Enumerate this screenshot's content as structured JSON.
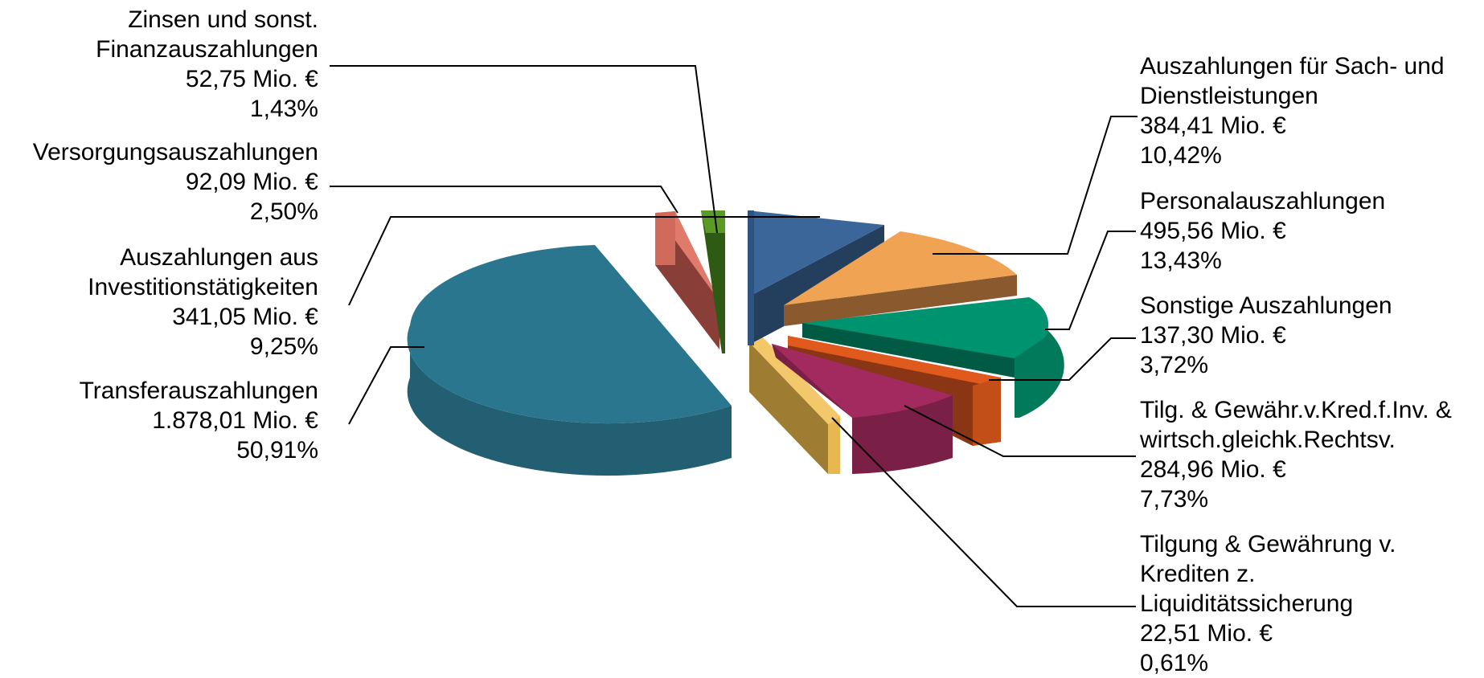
{
  "chart_data": {
    "type": "pie",
    "variant": "3d-exploded",
    "unit": "Mio. €",
    "slices": [
      {
        "label_lines": [
          "Auszahlungen für Sach- und",
          "Dienstleistungen"
        ],
        "value": 384.41,
        "value_text": "384,41 Mio. €",
        "percent": 10.42,
        "percent_text": "10,42%",
        "color": "#3A6699"
      },
      {
        "label_lines": [
          "Personalauszahlungen"
        ],
        "value": 495.56,
        "value_text": "495,56 Mio. €",
        "percent": 13.43,
        "percent_text": "13,43%",
        "color": "#F0A352"
      },
      {
        "label_lines": [
          "Sonstige Auszahlungen"
        ],
        "value": 137.3,
        "value_text": "137,30 Mio. €",
        "percent": 3.72,
        "percent_text": "3,72%",
        "color": "#00936F"
      },
      {
        "label_lines": [
          "Tilg. & Gewähr.v.Kred.f.Inv. &",
          "wirtsch.gleichk.Rechtsv."
        ],
        "value": 284.96,
        "value_text": "284,96 Mio. €",
        "percent": 7.73,
        "percent_text": "7,73%",
        "color": "#E05A1E"
      },
      {
        "label_lines": [
          "Tilgung & Gewährung v.",
          "Krediten z.",
          "Liquiditätssicherung"
        ],
        "value": 22.51,
        "value_text": "22,51 Mio. €",
        "percent": 0.61,
        "percent_text": "0,61%",
        "color": "#A32A5E"
      },
      {
        "label_lines": [
          "Transferauszahlungen"
        ],
        "value": 1878.01,
        "value_text": "1.878,01 Mio. €",
        "percent": 50.91,
        "percent_text": "50,91%",
        "color": "#2A768E"
      },
      {
        "label_lines": [
          "Auszahlungen aus",
          "Investitionstätigkeiten"
        ],
        "value": 341.05,
        "value_text": "341,05 Mio. €",
        "percent": 9.25,
        "percent_text": "9,25%",
        "color": "#B08C3A"
      },
      {
        "label_lines": [
          "Versorgungsauszahlungen"
        ],
        "value": 92.09,
        "value_text": "92,09 Mio. €",
        "percent": 2.5,
        "percent_text": "2,50%",
        "color": "#E07A6A"
      },
      {
        "label_lines": [
          "Zinsen und sonst.",
          "Finanzauszahlungen"
        ],
        "value": 52.75,
        "value_text": "52,75 Mio. €",
        "percent": 1.43,
        "percent_text": "1,43%",
        "color": "#4E8A1E"
      }
    ]
  }
}
